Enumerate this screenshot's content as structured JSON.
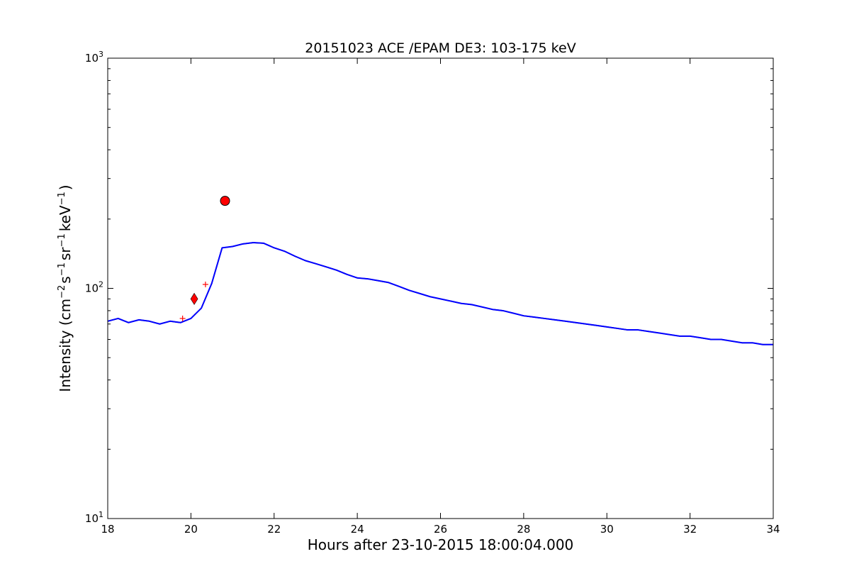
{
  "chart_data": {
    "type": "line",
    "title": "20151023 ACE /EPAM DE3: 103-175 keV",
    "xlabel": "Hours after 23-10-2015 18:00:04.000",
    "ylabel_main": "Intensity (cm",
    "ylabel_sup1": "−2",
    "ylabel_mid1": "s",
    "ylabel_sup2": "−1",
    "ylabel_mid2": "sr",
    "ylabel_sup3": "−1",
    "ylabel_mid3": "keV",
    "ylabel_sup4": "−1",
    "ylabel_end": ")",
    "xlim": [
      18,
      34
    ],
    "ylim": [
      10,
      1000
    ],
    "yscale": "log",
    "grid": false,
    "x_ticks": [
      18,
      20,
      22,
      24,
      26,
      28,
      30,
      32,
      34
    ],
    "x_tick_labels": [
      "18",
      "20",
      "22",
      "24",
      "26",
      "28",
      "30",
      "32",
      "34"
    ],
    "y_ticks": [
      10,
      100,
      1000
    ],
    "y_tick_labels": [
      {
        "base": "10",
        "exp": "1"
      },
      {
        "base": "10",
        "exp": "2"
      },
      {
        "base": "10",
        "exp": "3"
      }
    ],
    "series": [
      {
        "role": "raw",
        "color": "#000000",
        "x": [
          18.0,
          18.25,
          18.5,
          18.75,
          19.0,
          19.25,
          19.5,
          19.75,
          20.0,
          20.25,
          20.5,
          20.75,
          21.0,
          21.25,
          21.5,
          21.75,
          22.0,
          22.25,
          22.5,
          22.75,
          23.0,
          23.25,
          23.5,
          23.75,
          24.0,
          24.25,
          24.5,
          24.75,
          25.0,
          25.25,
          25.5,
          25.75,
          26.0,
          26.25,
          26.5,
          26.75,
          27.0,
          27.25,
          27.5,
          27.75,
          28.0,
          28.25,
          28.5,
          28.75,
          29.0,
          29.25,
          29.5,
          29.75,
          30.0,
          30.25,
          30.5,
          30.75,
          31.0,
          31.25,
          31.5,
          31.75,
          32.0,
          32.25,
          32.5,
          32.75,
          33.0,
          33.25,
          33.5,
          33.75,
          34.0
        ],
        "values": [
          72,
          74,
          71,
          73,
          72,
          70,
          72,
          71,
          74,
          82,
          105,
          150,
          152,
          156,
          158,
          157,
          150,
          145,
          138,
          132,
          128,
          124,
          120,
          115,
          111,
          110,
          108,
          106,
          102,
          98,
          95,
          92,
          90,
          88,
          86,
          85,
          83,
          81,
          80,
          78,
          76,
          75,
          74,
          73,
          72,
          71,
          70,
          69,
          68,
          67,
          66,
          66,
          65,
          64,
          63,
          62,
          62,
          61,
          60,
          60,
          59,
          58,
          58,
          57,
          57
        ]
      },
      {
        "role": "smoothed",
        "color": "#0000ff",
        "x": [
          18.0,
          18.25,
          18.5,
          18.75,
          19.0,
          19.25,
          19.5,
          19.75,
          20.0,
          20.25,
          20.5,
          20.75,
          21.0,
          21.25,
          21.5,
          21.75,
          22.0,
          22.25,
          22.5,
          22.75,
          23.0,
          23.25,
          23.5,
          23.75,
          24.0,
          24.25,
          24.5,
          24.75,
          25.0,
          25.25,
          25.5,
          25.75,
          26.0,
          26.25,
          26.5,
          26.75,
          27.0,
          27.25,
          27.5,
          27.75,
          28.0,
          28.25,
          28.5,
          28.75,
          29.0,
          29.25,
          29.5,
          29.75,
          30.0,
          30.25,
          30.5,
          30.75,
          31.0,
          31.25,
          31.5,
          31.75,
          32.0,
          32.25,
          32.5,
          32.75,
          33.0,
          33.25,
          33.5,
          33.75,
          34.0
        ],
        "values": [
          72,
          74,
          71,
          73,
          72,
          70,
          72,
          71,
          74,
          82,
          105,
          150,
          152,
          156,
          158,
          157,
          150,
          145,
          138,
          132,
          128,
          124,
          120,
          115,
          111,
          110,
          108,
          106,
          102,
          98,
          95,
          92,
          90,
          88,
          86,
          85,
          83,
          81,
          80,
          78,
          76,
          75,
          74,
          73,
          72,
          71,
          70,
          69,
          68,
          67,
          66,
          66,
          65,
          64,
          63,
          62,
          62,
          61,
          60,
          60,
          59,
          58,
          58,
          57,
          57
        ]
      }
    ],
    "markers": [
      {
        "shape": "diamond",
        "x": 20.08,
        "y": 90,
        "color": "#ff0000"
      },
      {
        "shape": "circle",
        "x": 20.82,
        "y": 240,
        "color": "#ff0000"
      },
      {
        "shape": "plus",
        "x": 19.8,
        "y": 74,
        "color": "#ff0000"
      },
      {
        "shape": "plus",
        "x": 20.35,
        "y": 104,
        "color": "#ff0000"
      }
    ]
  }
}
